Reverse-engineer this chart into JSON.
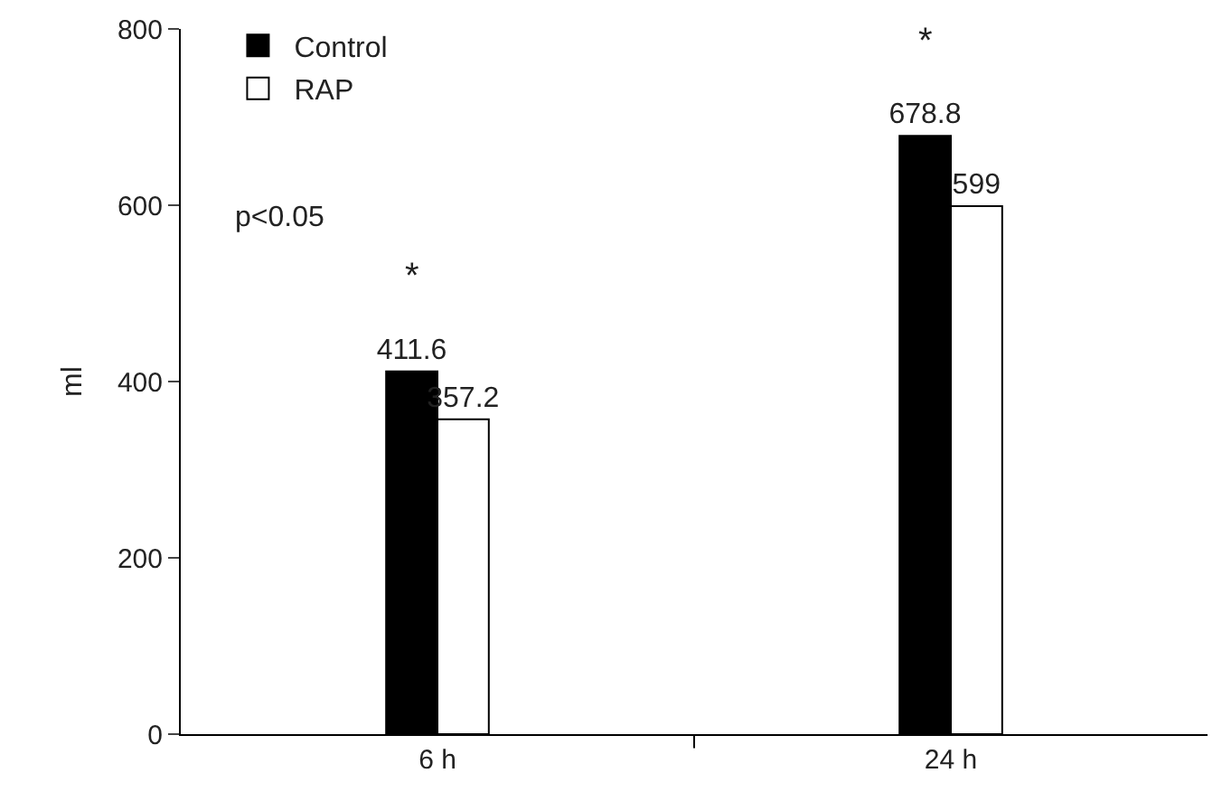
{
  "chart_data": {
    "type": "bar",
    "ylabel": "ml",
    "categories": [
      "6 h",
      "24 h"
    ],
    "series": [
      {
        "name": "Control",
        "color": "#000000",
        "values": [
          411.6,
          678.8
        ]
      },
      {
        "name": "RAP",
        "color": "#ffffff",
        "values": [
          357.2,
          599
        ]
      }
    ],
    "ylim": [
      0,
      800
    ],
    "yticks": [
      0,
      200,
      400,
      600,
      800
    ],
    "data_labels": true,
    "legend": "top left",
    "annotations": [
      "p<0.05",
      "*",
      "*"
    ]
  }
}
